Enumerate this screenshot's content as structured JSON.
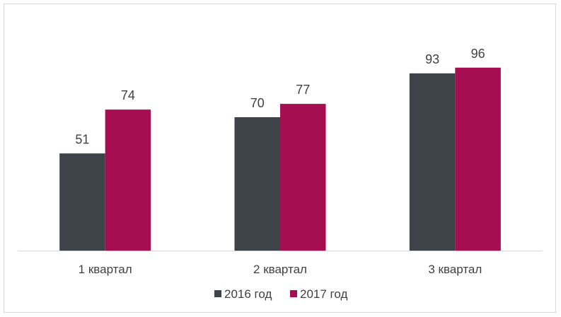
{
  "chart_data": {
    "type": "bar",
    "categories": [
      "1 квартал",
      "2 квартал",
      "3 квартал"
    ],
    "series": [
      {
        "name": "2016 год",
        "values": [
          51,
          70,
          93
        ],
        "color": "#3e4349"
      },
      {
        "name": "2017 год",
        "values": [
          74,
          77,
          96
        ],
        "color": "#a50f52"
      }
    ],
    "ylim": [
      0,
      100
    ],
    "grid": false,
    "legend_position": "bottom",
    "data_labels": true
  }
}
